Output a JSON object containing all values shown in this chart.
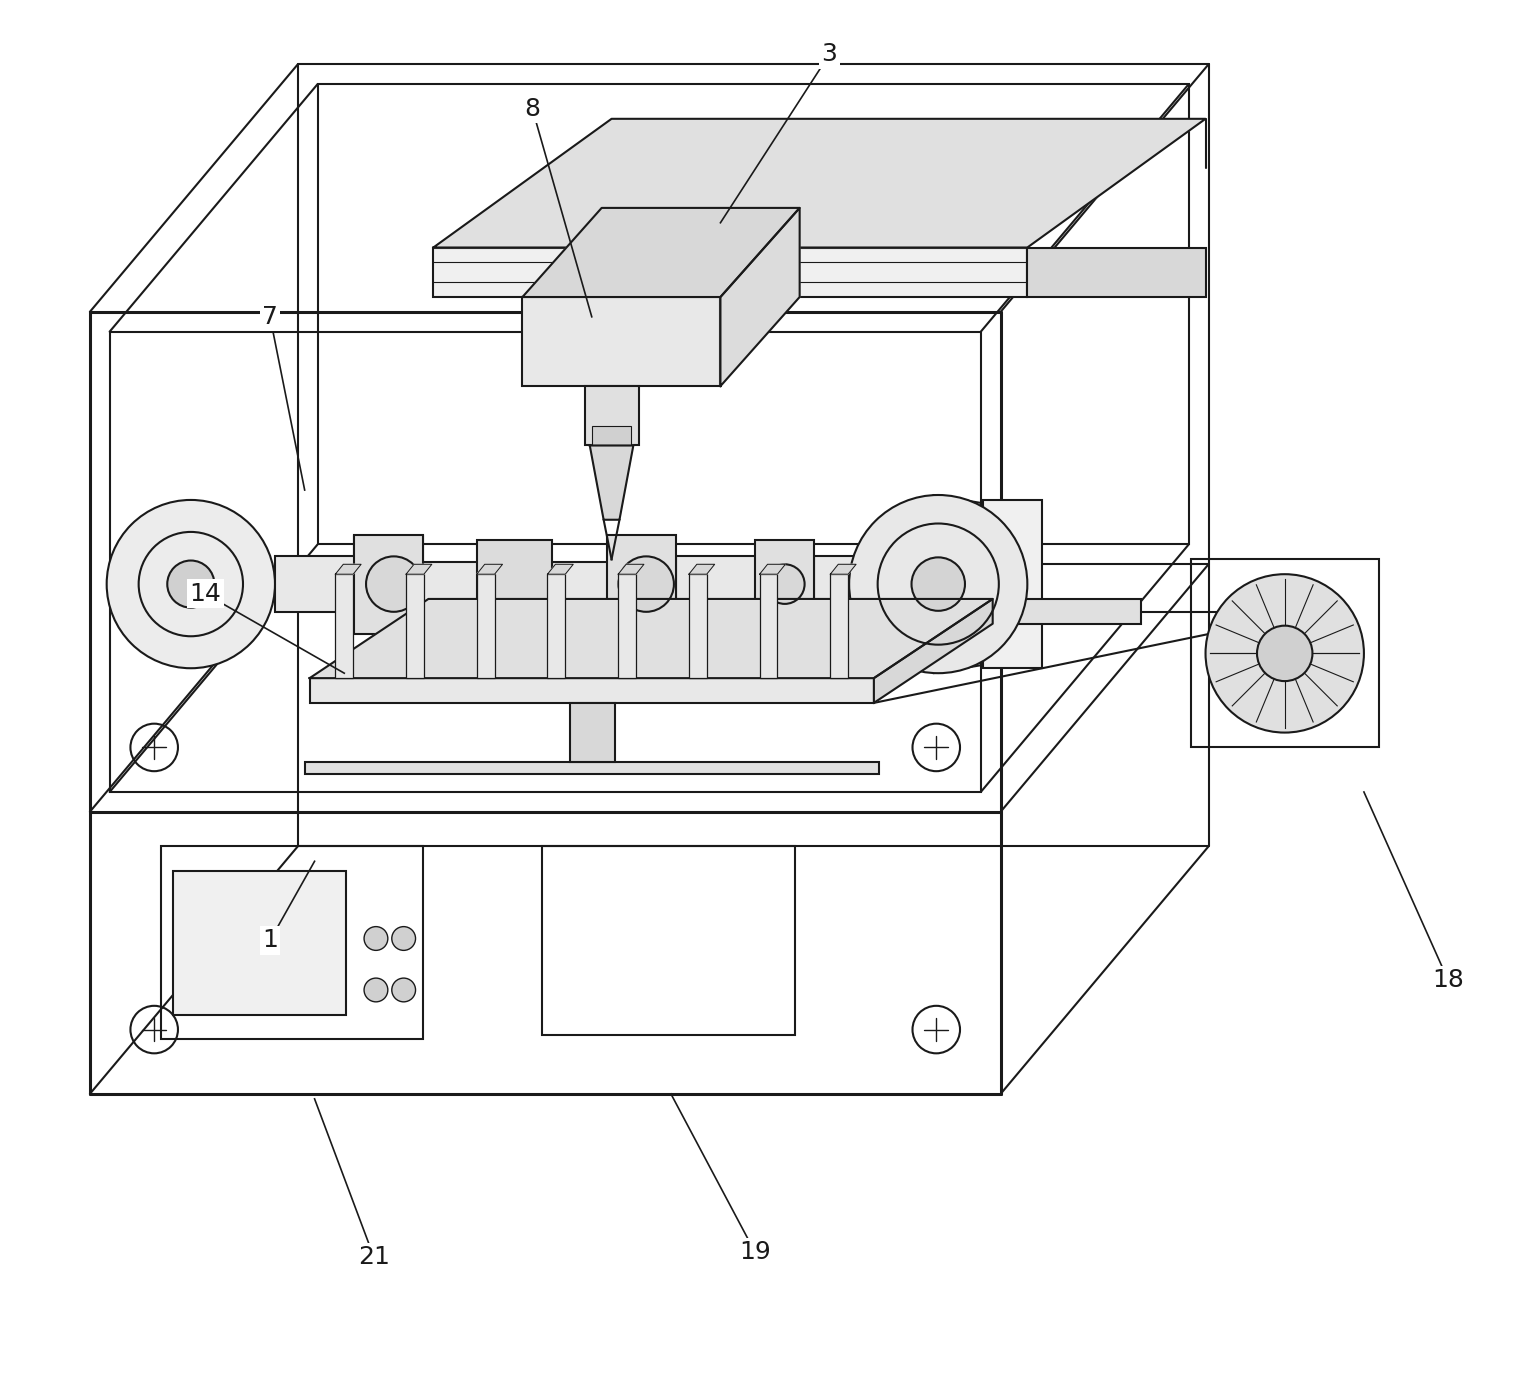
{
  "fig_width": 15.3,
  "fig_height": 13.83,
  "bg_color": "#ffffff",
  "lc": "#1a1a1a",
  "lw": 1.5,
  "tlw": 2.2,
  "label_fs": 18,
  "label_color": "#1a1a1a"
}
